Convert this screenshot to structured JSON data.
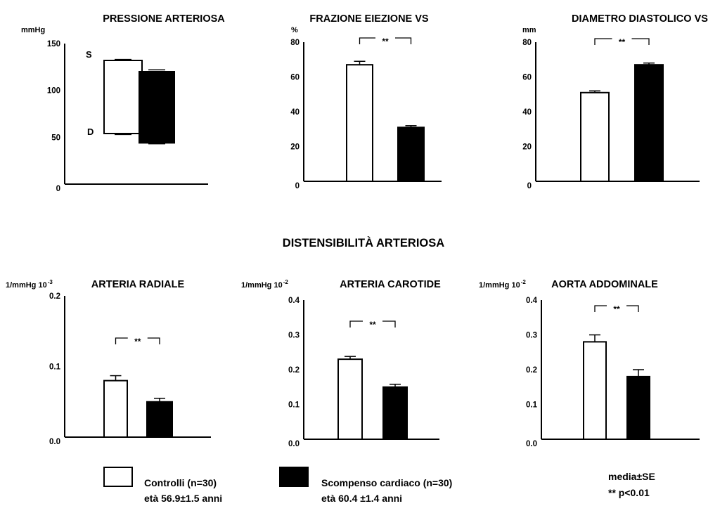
{
  "section_title": "DISTENSIBILITÀ ARTERIOSA",
  "chart_data": [
    {
      "type": "bar",
      "title": "PRESSIONE ARTERIOSA",
      "ylabel": "mmHg",
      "ylim": [
        0,
        150
      ],
      "yticks": [
        "0",
        "50",
        "100",
        "150"
      ],
      "floating": true,
      "level_labels": [
        "S",
        "D"
      ],
      "series": [
        {
          "name": "Controlli (n=30)",
          "fill": "#ffffff",
          "low": 54,
          "high": 132,
          "err_low": 1,
          "err_high": 1
        },
        {
          "name": "Scompenso cardiaco (n=30)",
          "fill": "#000000",
          "low": 44,
          "high": 120,
          "err_low": 1,
          "err_high": 2
        }
      ]
    },
    {
      "type": "bar",
      "title": "FRAZIONE EIEZIONE VS",
      "ylabel": "%",
      "ylim": [
        0,
        80
      ],
      "yticks": [
        "0",
        "20",
        "40",
        "60",
        "80"
      ],
      "significance": "**",
      "series": [
        {
          "name": "Controlli (n=30)",
          "fill": "#ffffff",
          "value": 67,
          "err": 2
        },
        {
          "name": "Scompenso cardiaco (n=30)",
          "fill": "#000000",
          "value": 31,
          "err": 1
        }
      ]
    },
    {
      "type": "bar",
      "title": "DIAMETRO DIASTOLICO VS",
      "ylabel": "mm",
      "ylim": [
        0,
        80
      ],
      "yticks": [
        "0",
        "20",
        "40",
        "60",
        "80"
      ],
      "significance": "**",
      "series": [
        {
          "name": "Controlli (n=30)",
          "fill": "#ffffff",
          "value": 51,
          "err": 1
        },
        {
          "name": "Scompenso cardiaco (n=30)",
          "fill": "#000000",
          "value": 67,
          "err": 1
        }
      ]
    },
    {
      "type": "bar",
      "title": "ARTERIA RADIALE",
      "ylabel": "1/mmHg 10",
      "ylabel_exp": "-3",
      "ylim": [
        0,
        0.2
      ],
      "yticks": [
        "0.0",
        "0.1",
        "0.2"
      ],
      "significance": "**",
      "series": [
        {
          "name": "Controlli (n=30)",
          "fill": "#ffffff",
          "value": 0.08,
          "err": 0.007
        },
        {
          "name": "Scompenso cardiaco (n=30)",
          "fill": "#000000",
          "value": 0.05,
          "err": 0.005
        }
      ]
    },
    {
      "type": "bar",
      "title": "ARTERIA CAROTIDE",
      "ylabel": "1/mmHg 10",
      "ylabel_exp": "-2",
      "ylim": [
        0,
        0.4
      ],
      "yticks": [
        "0.0",
        "0.1",
        "0.2",
        "0.3",
        "0.4"
      ],
      "significance": "**",
      "series": [
        {
          "name": "Controlli (n=30)",
          "fill": "#ffffff",
          "value": 0.23,
          "err": 0.008
        },
        {
          "name": "Scompenso cardiaco (n=30)",
          "fill": "#000000",
          "value": 0.15,
          "err": 0.008
        }
      ]
    },
    {
      "type": "bar",
      "title": "AORTA ADDOMINALE",
      "ylabel": "1/mmHg 10",
      "ylabel_exp": "-2",
      "ylim": [
        0,
        0.4
      ],
      "yticks": [
        "0.0",
        "0.1",
        "0.2",
        "0.3",
        "0.4"
      ],
      "significance": "**",
      "series": [
        {
          "name": "Controlli (n=30)",
          "fill": "#ffffff",
          "value": 0.28,
          "err": 0.02
        },
        {
          "name": "Scompenso cardiaco (n=30)",
          "fill": "#000000",
          "value": 0.18,
          "err": 0.02
        }
      ]
    }
  ],
  "legend": {
    "placement": "bottom",
    "items": [
      {
        "fill": "#ffffff",
        "line1": "Controlli (n=30)",
        "line2": "età 56.9±1.5 anni"
      },
      {
        "fill": "#000000",
        "line1": "Scompenso cardiaco (n=30)",
        "line2": "età 60.4 ±1.4 anni"
      }
    ]
  },
  "notes": {
    "line1": "media±SE",
    "line2": "** p<0.01"
  }
}
